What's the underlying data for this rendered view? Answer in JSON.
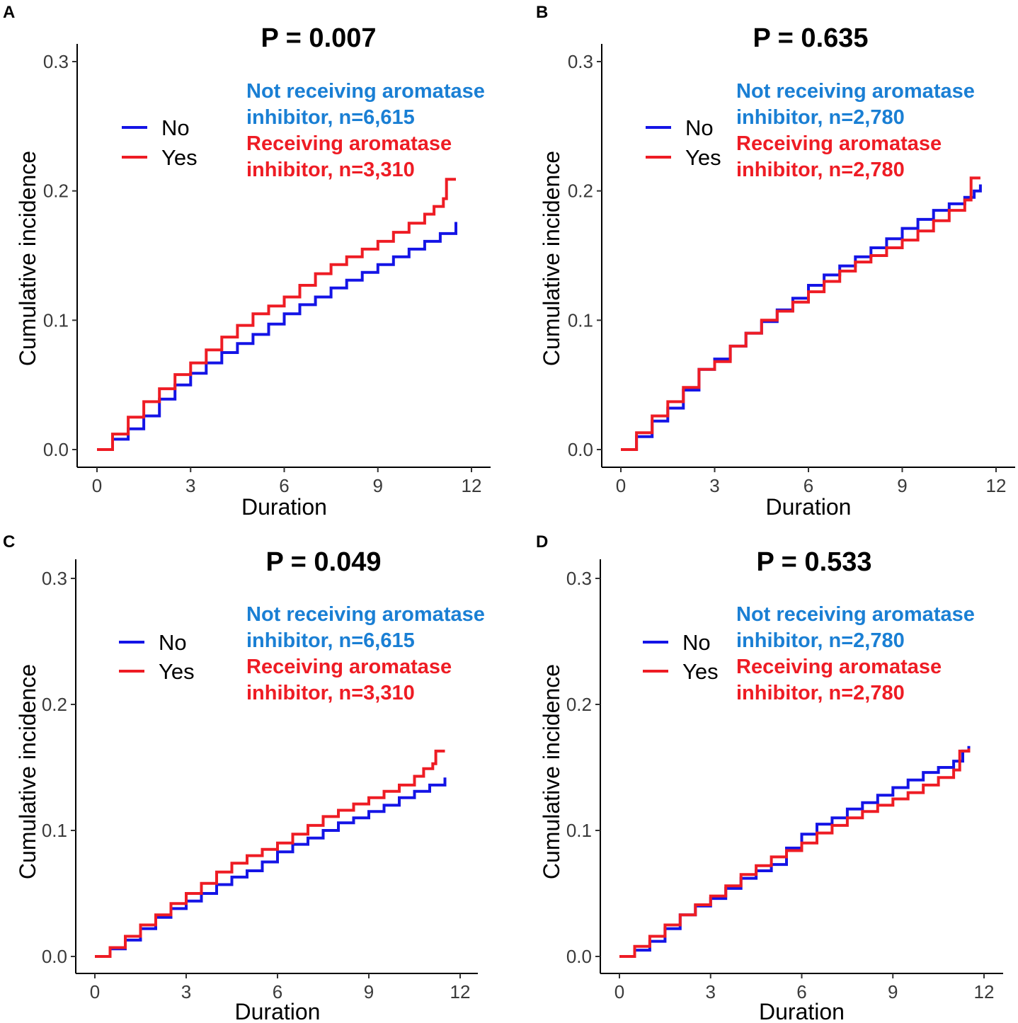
{
  "colors": {
    "no": "#1414e6",
    "yes": "#ee1c24",
    "annotation_blue": "#1a7fd4",
    "annotation_red": "#ee1c24",
    "axis": "#000000"
  },
  "chart_data": [
    {
      "panel": "A",
      "type": "line",
      "title": "P = 0.007",
      "xlabel": "Duration",
      "ylabel": "Cumulative incidence",
      "xlim": [
        0,
        12
      ],
      "ylim": [
        0,
        0.3
      ],
      "xticks": [
        "0",
        "3",
        "6",
        "9",
        "12"
      ],
      "yticks": [
        "0.0",
        "0.1",
        "0.2",
        "0.3"
      ],
      "legend": {
        "position": "top-left",
        "entries": [
          "No",
          "Yes"
        ]
      },
      "annotation": {
        "blue_line1": "Not receiving aromatase",
        "blue_line2": "inhibitor, n=6,615",
        "red_line1": "Receiving aromatase",
        "red_line2": "inhibitor, n=3,310"
      },
      "series": [
        {
          "name": "No",
          "x": [
            0,
            0.5,
            1,
            1.5,
            2,
            2.5,
            3,
            3.5,
            4,
            4.5,
            5,
            5.5,
            6,
            6.5,
            7,
            7.5,
            8,
            8.5,
            9,
            9.5,
            10,
            10.5,
            11,
            11.5
          ],
          "y": [
            0,
            0.008,
            0.016,
            0.026,
            0.039,
            0.05,
            0.059,
            0.067,
            0.075,
            0.082,
            0.089,
            0.097,
            0.105,
            0.112,
            0.118,
            0.125,
            0.131,
            0.137,
            0.143,
            0.149,
            0.155,
            0.161,
            0.167,
            0.176
          ]
        },
        {
          "name": "Yes",
          "x": [
            0,
            0.5,
            1,
            1.5,
            2,
            2.5,
            3,
            3.5,
            4,
            4.5,
            5,
            5.5,
            6,
            6.5,
            7,
            7.5,
            8,
            8.5,
            9,
            9.5,
            10,
            10.5,
            10.8,
            11.1,
            11.2,
            11.5
          ],
          "y": [
            0,
            0.012,
            0.025,
            0.037,
            0.047,
            0.058,
            0.067,
            0.077,
            0.087,
            0.096,
            0.105,
            0.111,
            0.118,
            0.127,
            0.136,
            0.143,
            0.149,
            0.155,
            0.161,
            0.168,
            0.175,
            0.182,
            0.188,
            0.194,
            0.209,
            0.209
          ]
        }
      ]
    },
    {
      "panel": "B",
      "type": "line",
      "title": "P = 0.635",
      "xlabel": "Duration",
      "ylabel": "Cumulative incidence",
      "xlim": [
        0,
        12
      ],
      "ylim": [
        0,
        0.3
      ],
      "xticks": [
        "0",
        "3",
        "6",
        "9",
        "12"
      ],
      "yticks": [
        "0.0",
        "0.1",
        "0.2",
        "0.3"
      ],
      "legend": {
        "position": "top-left",
        "entries": [
          "No",
          "Yes"
        ]
      },
      "annotation": {
        "blue_line1": "Not receiving aromatase",
        "blue_line2": "inhibitor, n=2,780",
        "red_line1": "Receiving aromatase",
        "red_line2": "inhibitor, n=2,780"
      },
      "series": [
        {
          "name": "No",
          "x": [
            0,
            0.5,
            1,
            1.5,
            2,
            2.5,
            3,
            3.5,
            4,
            4.5,
            5,
            5.5,
            6,
            6.5,
            7,
            7.5,
            8,
            8.5,
            9,
            9.5,
            10,
            10.5,
            11,
            11.3,
            11.5
          ],
          "y": [
            0,
            0.01,
            0.022,
            0.032,
            0.046,
            0.062,
            0.07,
            0.08,
            0.09,
            0.099,
            0.108,
            0.117,
            0.127,
            0.135,
            0.142,
            0.149,
            0.156,
            0.163,
            0.171,
            0.178,
            0.185,
            0.19,
            0.195,
            0.2,
            0.205
          ]
        },
        {
          "name": "Yes",
          "x": [
            0,
            0.5,
            1,
            1.5,
            2,
            2.5,
            3,
            3.5,
            4,
            4.5,
            5,
            5.5,
            6,
            6.5,
            7,
            7.5,
            8,
            8.5,
            9,
            9.5,
            10,
            10.5,
            11,
            11.2,
            11.5
          ],
          "y": [
            0,
            0.013,
            0.026,
            0.037,
            0.048,
            0.062,
            0.068,
            0.08,
            0.09,
            0.1,
            0.107,
            0.114,
            0.122,
            0.13,
            0.138,
            0.145,
            0.15,
            0.156,
            0.162,
            0.169,
            0.177,
            0.185,
            0.193,
            0.21,
            0.21
          ]
        }
      ]
    },
    {
      "panel": "C",
      "type": "line",
      "title": "P = 0.049",
      "xlabel": "Duration",
      "ylabel": "Cumulative incidence",
      "xlim": [
        0,
        12
      ],
      "ylim": [
        0,
        0.3
      ],
      "xticks": [
        "0",
        "3",
        "6",
        "9",
        "12"
      ],
      "yticks": [
        "0.0",
        "0.1",
        "0.2",
        "0.3"
      ],
      "legend": {
        "position": "top-left",
        "entries": [
          "No",
          "Yes"
        ]
      },
      "annotation": {
        "blue_line1": "Not receiving aromatase",
        "blue_line2": "inhibitor, n=6,615",
        "red_line1": "Receiving aromatase",
        "red_line2": "inhibitor, n=3,310"
      },
      "series": [
        {
          "name": "No",
          "x": [
            0,
            0.5,
            1,
            1.5,
            2,
            2.5,
            3,
            3.5,
            4,
            4.5,
            5,
            5.5,
            6,
            6.5,
            7,
            7.5,
            8,
            8.5,
            9,
            9.5,
            10,
            10.5,
            11,
            11.5
          ],
          "y": [
            0,
            0.006,
            0.013,
            0.022,
            0.031,
            0.038,
            0.044,
            0.05,
            0.057,
            0.063,
            0.068,
            0.075,
            0.083,
            0.089,
            0.094,
            0.1,
            0.106,
            0.11,
            0.115,
            0.12,
            0.126,
            0.131,
            0.136,
            0.142
          ]
        },
        {
          "name": "Yes",
          "x": [
            0,
            0.5,
            1,
            1.5,
            2,
            2.5,
            3,
            3.5,
            4,
            4.5,
            5,
            5.5,
            6,
            6.5,
            7,
            7.5,
            8,
            8.5,
            9,
            9.5,
            10,
            10.5,
            10.8,
            11.1,
            11.2,
            11.5
          ],
          "y": [
            0,
            0.007,
            0.016,
            0.025,
            0.033,
            0.042,
            0.05,
            0.058,
            0.067,
            0.074,
            0.08,
            0.085,
            0.09,
            0.097,
            0.104,
            0.111,
            0.116,
            0.121,
            0.126,
            0.131,
            0.136,
            0.143,
            0.149,
            0.153,
            0.163,
            0.163
          ]
        }
      ]
    },
    {
      "panel": "D",
      "type": "line",
      "title": "P = 0.533",
      "xlabel": "Duration",
      "ylabel": "Cumulative incidence",
      "xlim": [
        0,
        12
      ],
      "ylim": [
        0,
        0.3
      ],
      "xticks": [
        "0",
        "3",
        "6",
        "9",
        "12"
      ],
      "yticks": [
        "0.0",
        "0.1",
        "0.2",
        "0.3"
      ],
      "legend": {
        "position": "top-left",
        "entries": [
          "No",
          "Yes"
        ]
      },
      "annotation": {
        "blue_line1": "Not receiving aromatase",
        "blue_line2": "inhibitor, n=2,780",
        "red_line1": "Receiving aromatase",
        "red_line2": "inhibitor, n=2,780"
      },
      "series": [
        {
          "name": "No",
          "x": [
            0,
            0.5,
            1,
            1.5,
            2,
            2.5,
            3,
            3.5,
            4,
            4.5,
            5,
            5.5,
            6,
            6.5,
            7,
            7.5,
            8,
            8.5,
            9,
            9.5,
            10,
            10.5,
            11,
            11.3,
            11.5
          ],
          "y": [
            0,
            0.005,
            0.012,
            0.022,
            0.033,
            0.04,
            0.046,
            0.054,
            0.062,
            0.068,
            0.073,
            0.086,
            0.097,
            0.105,
            0.11,
            0.117,
            0.122,
            0.128,
            0.134,
            0.14,
            0.146,
            0.15,
            0.155,
            0.163,
            0.167
          ]
        },
        {
          "name": "Yes",
          "x": [
            0,
            0.5,
            1,
            1.5,
            2,
            2.5,
            3,
            3.5,
            4,
            4.5,
            5,
            5.5,
            6,
            6.5,
            7,
            7.5,
            8,
            8.5,
            9,
            9.5,
            10,
            10.5,
            11,
            11.2,
            11.5
          ],
          "y": [
            0,
            0.008,
            0.016,
            0.025,
            0.033,
            0.041,
            0.048,
            0.056,
            0.065,
            0.072,
            0.079,
            0.084,
            0.09,
            0.098,
            0.104,
            0.11,
            0.115,
            0.12,
            0.125,
            0.13,
            0.136,
            0.142,
            0.148,
            0.163,
            0.165
          ]
        }
      ]
    }
  ]
}
